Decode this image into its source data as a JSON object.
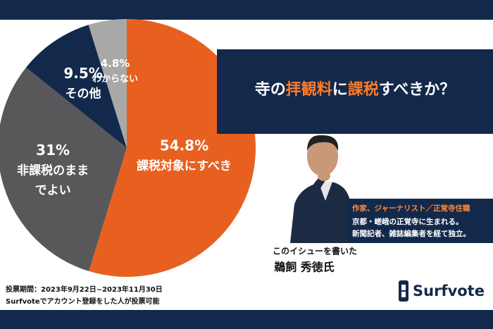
{
  "chart_data": {
    "type": "pie",
    "categories": [
      [
        "課税対象にすべき"
      ],
      [
        "非課税のまま",
        "でよい"
      ],
      [
        "その他"
      ],
      [
        "わからない"
      ]
    ],
    "values": [
      54.8,
      31,
      9.5,
      4.8
    ],
    "value_labels": [
      "54.8%",
      "31%",
      "9.5%",
      "4.8%"
    ],
    "colors": [
      "#e8601f",
      "#58585a",
      "#13294b",
      "#a8a8a8"
    ]
  },
  "title": [
    {
      "text": "寺の",
      "highlight": false
    },
    {
      "text": "拝観料",
      "highlight": true
    },
    {
      "text": "に",
      "highlight": false
    },
    {
      "text": "課税",
      "highlight": true
    },
    {
      "text": "すべきか？",
      "highlight": false
    }
  ],
  "author": {
    "role": "作家、ジャーナリスト／正覚寺住職",
    "bio": [
      "京都・嵯峨の正覚寺に生まれる。",
      "新聞記者、雑誌編集者を経て独立。"
    ],
    "caption": "このイシューを書いた",
    "name": "鵜飼 秀徳氏"
  },
  "footnotes": [
    "投票期間：2023年9月22日~2023年11月30日",
    "Surfvoteでアカウント登録をした人が投票可能"
  ],
  "logo": "Surfvote"
}
